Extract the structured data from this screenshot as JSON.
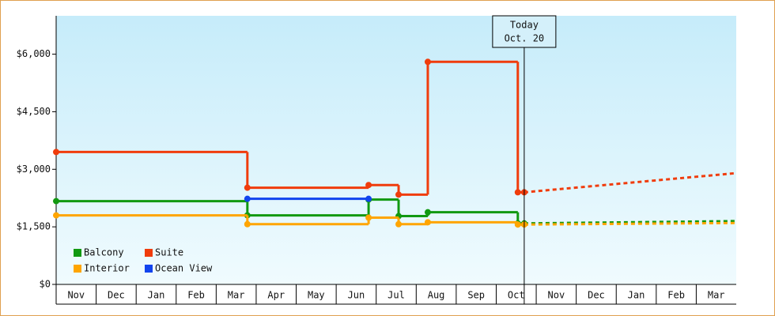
{
  "chart_data": {
    "type": "step-line",
    "categories": [
      "Nov",
      "Dec",
      "Jan",
      "Feb",
      "Mar",
      "Apr",
      "May",
      "Jun",
      "Jul",
      "Aug",
      "Sep",
      "Oct",
      "Nov",
      "Dec",
      "Jan",
      "Feb",
      "Mar"
    ],
    "xlim": [
      0,
      17
    ],
    "ylim": [
      0,
      7000
    ],
    "yticks": [
      {
        "value": 0,
        "label": "$0"
      },
      {
        "value": 1500,
        "label": "$1,500"
      },
      {
        "value": 3000,
        "label": "$3,000"
      },
      {
        "value": 4500,
        "label": "$4,500"
      },
      {
        "value": 6000,
        "label": "$6,000"
      }
    ],
    "series": [
      {
        "name": "Balcony",
        "color": "#119911",
        "x": [
          0,
          4.78,
          7.81,
          8.56,
          9.29,
          11.54,
          11.7
        ],
        "values": [
          2170,
          1800,
          2210,
          1780,
          1880,
          1590,
          1590
        ],
        "forecast": {
          "x": [
            11.7,
            17
          ],
          "values": [
            1590,
            1650
          ]
        }
      },
      {
        "name": "Suite",
        "color": "#f03c0c",
        "x": [
          0,
          4.78,
          7.81,
          8.56,
          9.29,
          11.54,
          11.7
        ],
        "values": [
          3450,
          2520,
          2590,
          2340,
          5800,
          2400,
          2400
        ],
        "forecast": {
          "x": [
            11.7,
            17
          ],
          "values": [
            2400,
            2900
          ]
        }
      },
      {
        "name": "Interior",
        "color": "#ffa500",
        "x": [
          0,
          4.78,
          7.81,
          8.56,
          9.29,
          11.54,
          11.7
        ],
        "values": [
          1800,
          1570,
          1740,
          1570,
          1620,
          1560,
          1560
        ],
        "forecast": {
          "x": [
            11.7,
            17
          ],
          "values": [
            1560,
            1600
          ]
        }
      },
      {
        "name": "Ocean View",
        "color": "#1144ee",
        "x": [
          4.78,
          7.81
        ],
        "values": [
          2230,
          2230
        ]
      }
    ],
    "today": {
      "x": 11.7,
      "label": [
        "Today",
        "Oct. 20"
      ]
    },
    "legend": "bottom-left",
    "grid": false
  }
}
